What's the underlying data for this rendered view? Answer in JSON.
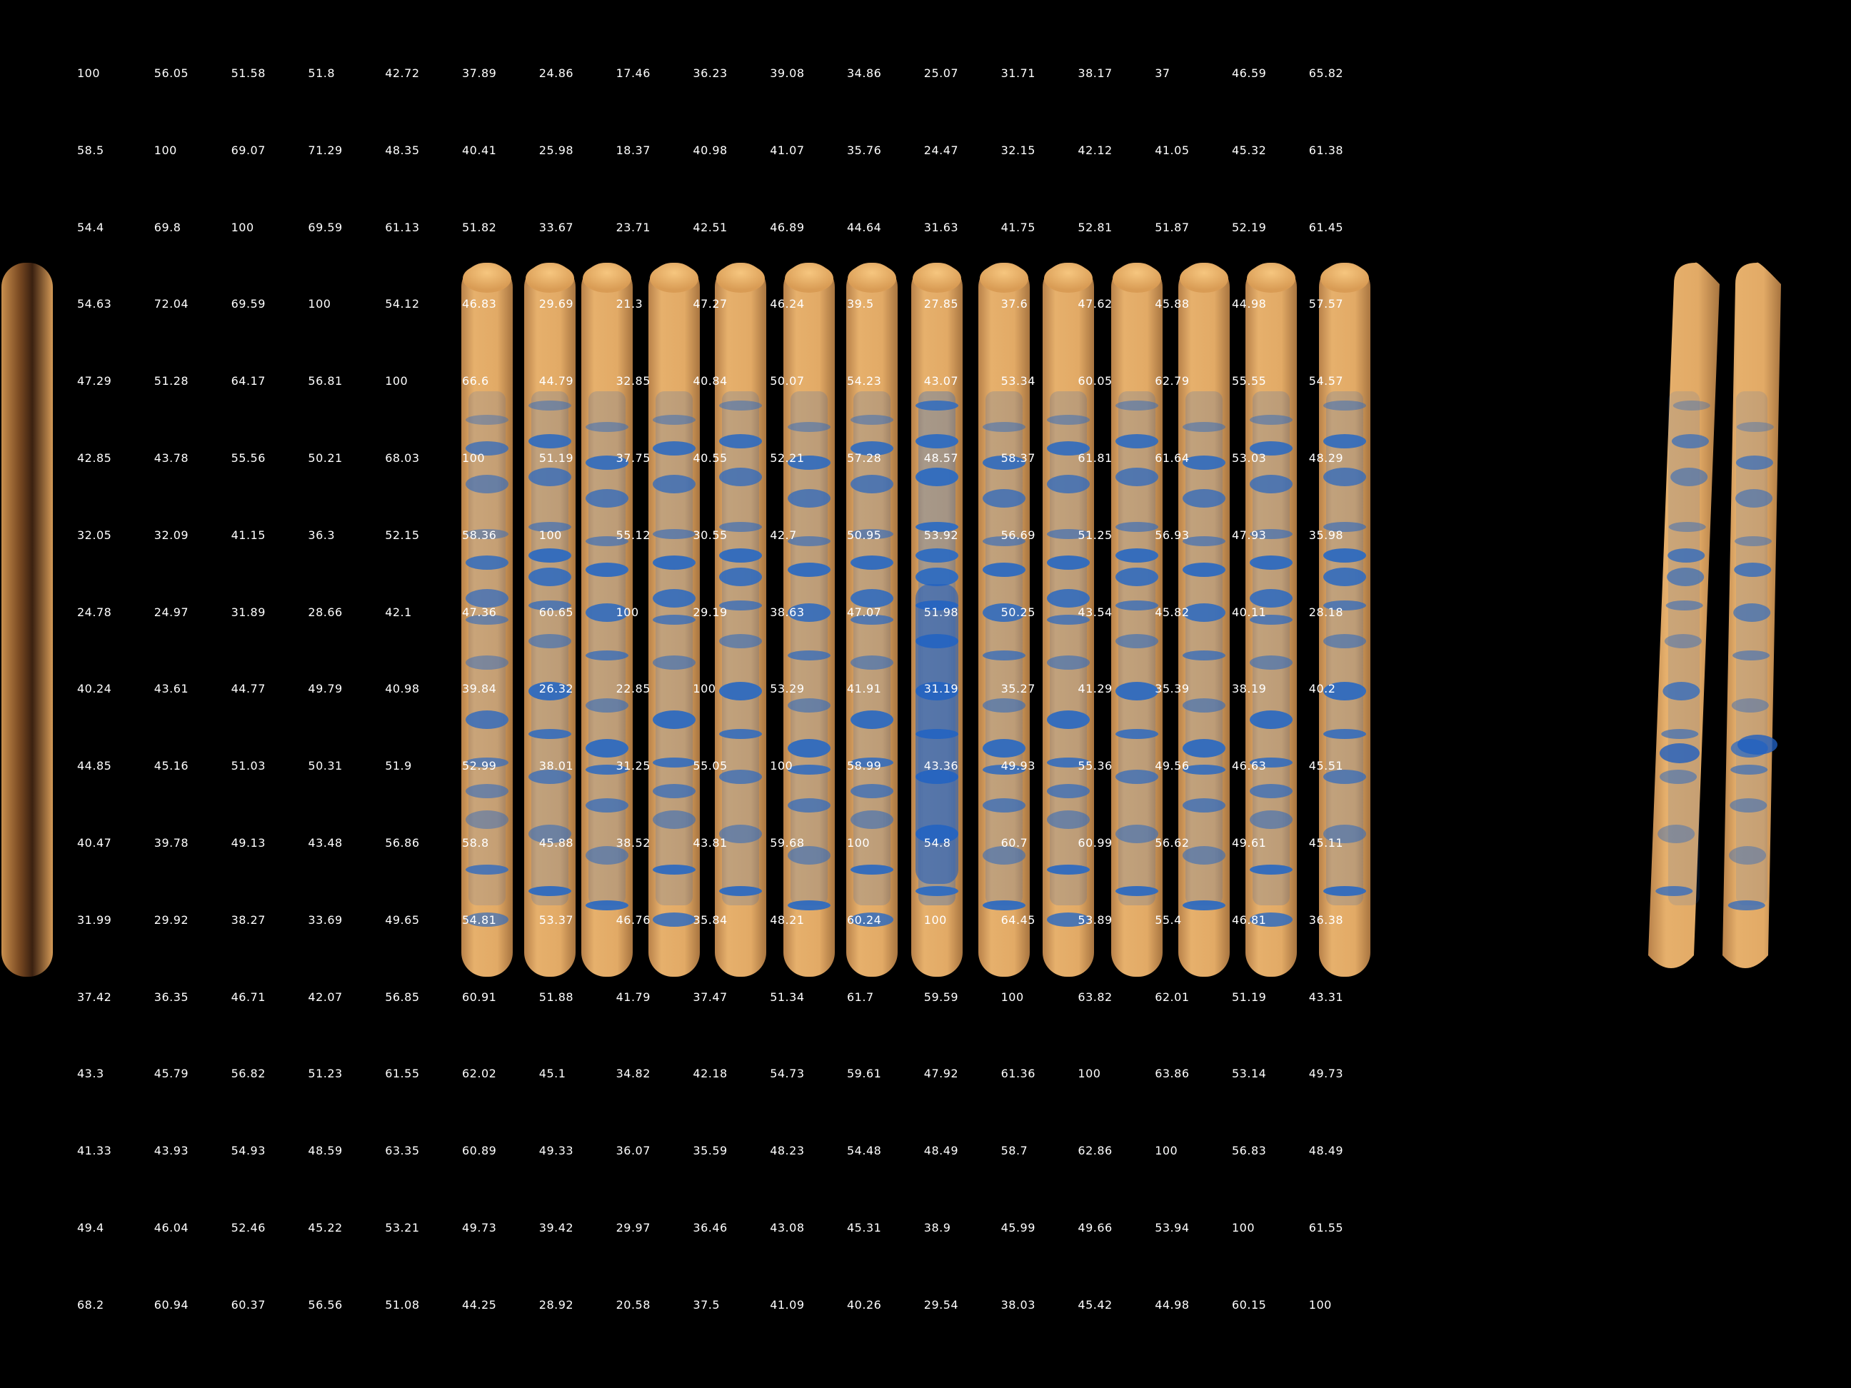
{
  "colors": {
    "background": "#000000",
    "lane_base": "#dca25e",
    "lane_highlight": "#e9b774",
    "band_stain": "#2f6bc0",
    "heavy_band_stain": "#1f5fc0",
    "edge_strip_dark": "#2a1608",
    "matrix_text": "#ffffff"
  },
  "similarity_matrix": [
    [
      "100",
      "56.05",
      "51.58",
      "51.8",
      "42.72",
      "37.89",
      "24.86",
      "17.46",
      "36.23",
      "39.08",
      "34.86",
      "25.07",
      "31.71",
      "38.17",
      "37",
      "46.59",
      "65.82"
    ],
    [
      "58.5",
      "100",
      "69.07",
      "71.29",
      "48.35",
      "40.41",
      "25.98",
      "18.37",
      "40.98",
      "41.07",
      "35.76",
      "24.47",
      "32.15",
      "42.12",
      "41.05",
      "45.32",
      "61.38"
    ],
    [
      "54.4",
      "69.8",
      "100",
      "69.59",
      "61.13",
      "51.82",
      "33.67",
      "23.71",
      "42.51",
      "46.89",
      "44.64",
      "31.63",
      "41.75",
      "52.81",
      "51.87",
      "52.19",
      "61.45"
    ],
    [
      "54.63",
      "72.04",
      "69.59",
      "100",
      "54.12",
      "46.83",
      "29.69",
      "21.3",
      "47.27",
      "46.24",
      "39.5",
      "27.85",
      "37.6",
      "47.62",
      "45.88",
      "44.98",
      "57.57"
    ],
    [
      "47.29",
      "51.28",
      "64.17",
      "56.81",
      "100",
      "66.6",
      "44.79",
      "32.85",
      "40.84",
      "50.07",
      "54.23",
      "43.07",
      "53.34",
      "60.05",
      "62.79",
      "55.55",
      "54.57"
    ],
    [
      "42.85",
      "43.78",
      "55.56",
      "50.21",
      "68.03",
      "100",
      "51.19",
      "37.75",
      "40.55",
      "52.21",
      "57.28",
      "48.57",
      "58.37",
      "61.81",
      "61.64",
      "53.03",
      "48.29"
    ],
    [
      "32.05",
      "32.09",
      "41.15",
      "36.3",
      "52.15",
      "58.36",
      "100",
      "55.12",
      "30.55",
      "42.7",
      "50.95",
      "53.92",
      "56.69",
      "51.25",
      "56.93",
      "47.93",
      "35.98"
    ],
    [
      "24.78",
      "24.97",
      "31.89",
      "28.66",
      "42.1",
      "47.36",
      "60.65",
      "100",
      "29.19",
      "38.63",
      "47.07",
      "51.98",
      "50.25",
      "43.54",
      "45.82",
      "40.11",
      "28.18"
    ],
    [
      "40.24",
      "43.61",
      "44.77",
      "49.79",
      "40.98",
      "39.84",
      "26.32",
      "22.85",
      "100",
      "53.29",
      "41.91",
      "31.19",
      "35.27",
      "41.29",
      "35.39",
      "38.19",
      "40.2"
    ],
    [
      "44.85",
      "45.16",
      "51.03",
      "50.31",
      "51.9",
      "52.99",
      "38.01",
      "31.25",
      "55.05",
      "100",
      "58.99",
      "43.36",
      "49.93",
      "55.36",
      "49.56",
      "46.63",
      "45.51"
    ],
    [
      "40.47",
      "39.78",
      "49.13",
      "43.48",
      "56.86",
      "58.8",
      "45.88",
      "38.52",
      "43.81",
      "59.68",
      "100",
      "54.8",
      "60.7",
      "60.99",
      "56.62",
      "49.61",
      "45.11"
    ],
    [
      "31.99",
      "29.92",
      "38.27",
      "33.69",
      "49.65",
      "54.81",
      "53.37",
      "46.76",
      "35.84",
      "48.21",
      "60.24",
      "100",
      "64.45",
      "53.89",
      "55.4",
      "46.81",
      "36.38"
    ],
    [
      "37.42",
      "36.35",
      "46.71",
      "42.07",
      "56.85",
      "60.91",
      "51.88",
      "41.79",
      "37.47",
      "51.34",
      "61.7",
      "59.59",
      "100",
      "63.82",
      "62.01",
      "51.19",
      "43.31"
    ],
    [
      "43.3",
      "45.79",
      "56.82",
      "51.23",
      "61.55",
      "62.02",
      "45.1",
      "34.82",
      "42.18",
      "54.73",
      "59.61",
      "47.92",
      "61.36",
      "100",
      "63.86",
      "53.14",
      "49.73"
    ],
    [
      "41.33",
      "43.93",
      "54.93",
      "48.59",
      "63.35",
      "60.89",
      "49.33",
      "36.07",
      "35.59",
      "48.23",
      "54.48",
      "48.49",
      "58.7",
      "62.86",
      "100",
      "56.83",
      "48.49"
    ],
    [
      "49.4",
      "46.04",
      "52.46",
      "45.22",
      "53.21",
      "49.73",
      "39.42",
      "29.97",
      "36.46",
      "43.08",
      "45.31",
      "38.9",
      "45.99",
      "49.66",
      "53.94",
      "100",
      "61.55"
    ],
    [
      "68.2",
      "60.94",
      "60.37",
      "56.56",
      "51.08",
      "44.25",
      "28.92",
      "20.58",
      "37.5",
      "41.09",
      "40.26",
      "29.54",
      "38.03",
      "45.42",
      "44.98",
      "60.15",
      "100"
    ]
  ]
}
